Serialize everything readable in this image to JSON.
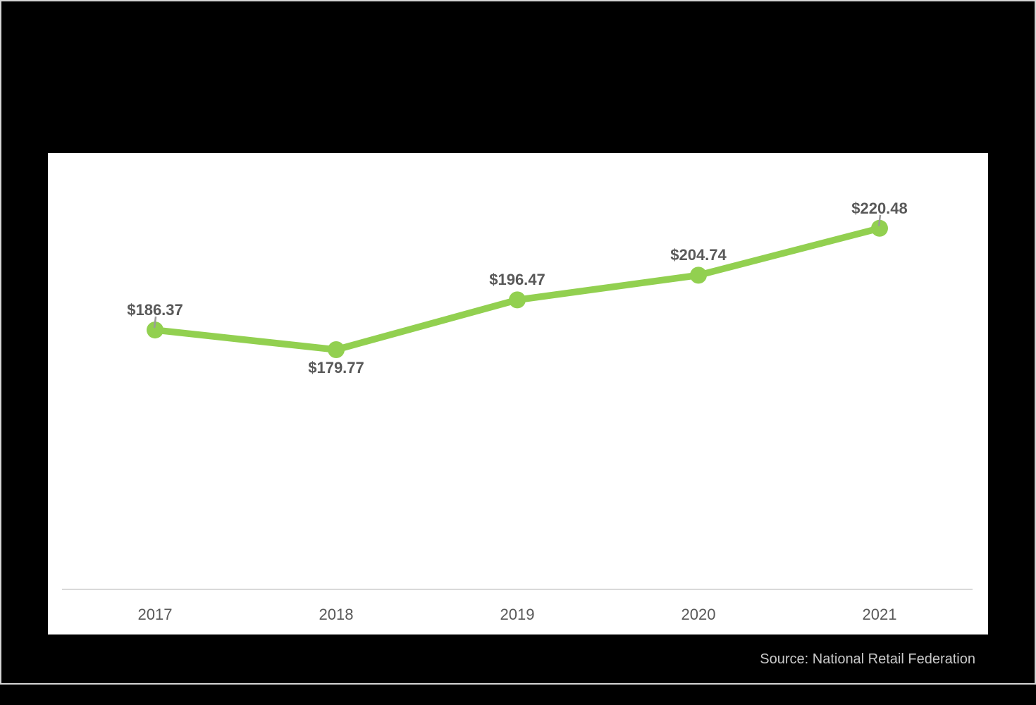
{
  "page": {
    "background_color": "#000000",
    "frame_border_color": "#d5d5d5",
    "card_background_color": "#ffffff"
  },
  "source_note": "Source: National Retail Federation",
  "chart_data": {
    "type": "line",
    "title": "",
    "x": [
      "2017",
      "2018",
      "2019",
      "2020",
      "2021"
    ],
    "series": [
      {
        "name": "annual-spend",
        "values": [
          186.37,
          179.77,
          196.47,
          204.74,
          220.48
        ]
      }
    ],
    "point_labels": [
      "$186.37",
      "$179.77",
      "$196.47",
      "$204.74",
      "$220.48"
    ],
    "label_positions": [
      "above",
      "below",
      "above",
      "above",
      "above"
    ],
    "leader_tick_indices": [
      0,
      4
    ],
    "line_color": "#92D050",
    "marker_color": "#92D050",
    "point_label_color": "#595959",
    "axis_label_color": "#595959",
    "axis_line_color": "#d9d9d9",
    "leader_tick_color": "#9b9b9b",
    "grid": false,
    "legend": "none",
    "y_axis_visible": false
  }
}
